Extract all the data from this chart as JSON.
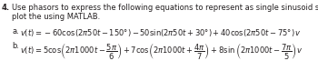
{
  "bg_color": "#ffffff",
  "text_color": "#231f20",
  "font_size": 6.0,
  "math_font_size": 6.0,
  "num": "4.",
  "header1": "Use phasors to express the following equations to represent as single sinusoid signal and",
  "header2": "plot the using MATLAB.",
  "la": "a.",
  "lb": "b.",
  "eq_a": "$v(t) = -60\\cos(2\\pi 50t - 150°) - 50\\sin(2\\pi 50t + 30°) + 40\\cos(2\\pi 50t - 75°)\\,v$",
  "eq_b": "$v(t) = 5\\cos\\!\\left(2\\pi 1000t - \\dfrac{5\\pi}{6}\\right) + 7\\cos\\!\\left(2\\pi 1000t + \\dfrac{4\\pi}{7}\\right) + 8\\sin\\left(2\\pi 1000t - \\dfrac{7\\pi}{5}\\right)v$",
  "fig_width": 3.5,
  "fig_height": 0.67,
  "dpi": 100
}
